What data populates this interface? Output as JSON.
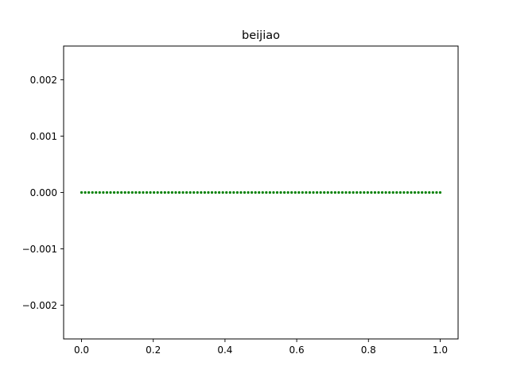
{
  "chart_data": {
    "type": "scatter",
    "title": "beijiao",
    "xlabel": "",
    "ylabel": "",
    "xlim": [
      -0.05,
      1.05
    ],
    "ylim": [
      -0.0026,
      0.0026
    ],
    "xticks": [
      0.0,
      0.2,
      0.4,
      0.6,
      0.8,
      1.0
    ],
    "xtick_labels": [
      "0.0",
      "0.2",
      "0.4",
      "0.6",
      "0.8",
      "1.0"
    ],
    "yticks": [
      0.002,
      0.001,
      0.0,
      -0.001,
      -0.002
    ],
    "ytick_labels": [
      "0.002",
      "0.001",
      "0.000",
      "−0.001",
      "−0.002"
    ],
    "grid": false,
    "series": [
      {
        "color": "#008000",
        "x_start": 0.0,
        "x_end": 1.0,
        "num_points": 100,
        "y_value": 0.0
      }
    ]
  }
}
